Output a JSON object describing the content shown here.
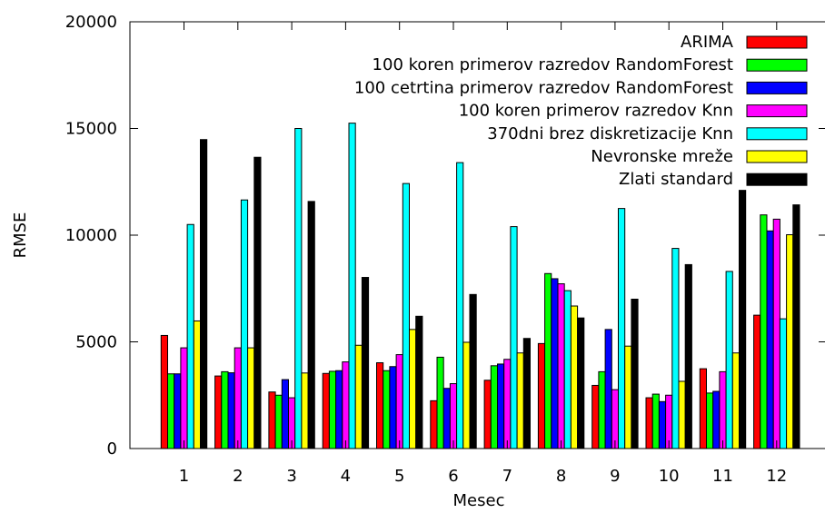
{
  "chart_data": {
    "type": "bar",
    "xlabel": "Mesec",
    "ylabel": "RMSE",
    "ylim": [
      0,
      20000
    ],
    "yticks": [
      0,
      5000,
      10000,
      15000,
      20000
    ],
    "categories": [
      "1",
      "2",
      "3",
      "4",
      "5",
      "6",
      "7",
      "8",
      "9",
      "10",
      "11",
      "12"
    ],
    "legend_position": "top-right",
    "grid": false,
    "series": [
      {
        "name": "ARIMA",
        "color": "#ff0000",
        "values": [
          5300,
          3400,
          2650,
          3520,
          4020,
          2240,
          3200,
          4920,
          2960,
          2380,
          3740,
          6250
        ]
      },
      {
        "name": "100 koren primerov razredov RandomForest",
        "color": "#00ff00",
        "values": [
          3500,
          3600,
          2500,
          3620,
          3650,
          4280,
          3880,
          8200,
          3600,
          2550,
          2600,
          10950
        ]
      },
      {
        "name": "100 cetrtina primerov razredov RandomForest",
        "color": "#0000ff",
        "values": [
          3500,
          3550,
          3230,
          3650,
          3840,
          2820,
          3960,
          7960,
          5580,
          2200,
          2680,
          10200
        ]
      },
      {
        "name": "100 koren primerov razredov Knn",
        "color": "#ff00ff",
        "values": [
          4720,
          4720,
          2380,
          4060,
          4400,
          3040,
          4180,
          7720,
          2760,
          2500,
          3600,
          10750
        ]
      },
      {
        "name": "370dni brez diskretizacije Knn",
        "color": "#00ffff",
        "values": [
          10500,
          11650,
          15000,
          15250,
          12420,
          13400,
          10400,
          7400,
          11250,
          9380,
          8300,
          6080
        ]
      },
      {
        "name": "Nevronske mreže",
        "color": "#ffff00",
        "values": [
          5980,
          4720,
          3540,
          4840,
          5580,
          4980,
          4480,
          6680,
          4800,
          3150,
          4480,
          10020
        ]
      },
      {
        "name": "Zlati standard",
        "color": "#000000",
        "values": [
          14480,
          13650,
          11580,
          8020,
          6200,
          7220,
          5160,
          6120,
          7000,
          8620,
          12100,
          11420
        ]
      }
    ]
  }
}
